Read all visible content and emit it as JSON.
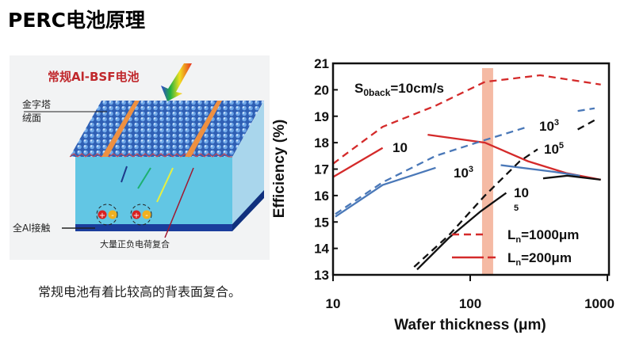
{
  "title": "PERC电池原理",
  "diagram": {
    "heading": "常规Al-BSF电池",
    "label_texture_1": "金字塔",
    "label_texture_2": "绒面",
    "label_contact": "全Al接触",
    "label_recombination": "大量正负电荷复合",
    "plus": "+",
    "minus": "-"
  },
  "caption": "常规电池有着比较高的背表面复合。",
  "chart_data": {
    "type": "line",
    "xlabel": "Wafer thickness (μm)",
    "ylabel": "Efficiency (%)",
    "xscale": "log",
    "xlim": [
      10,
      1000
    ],
    "ylim": [
      13,
      21
    ],
    "xticks": [
      "10",
      "100",
      "1000"
    ],
    "yticks": [
      "13",
      "14",
      "15",
      "16",
      "17",
      "18",
      "19",
      "20",
      "21"
    ],
    "grid": false,
    "highlight_band": {
      "x": [
        122,
        147
      ],
      "color": "#f4b39a"
    },
    "annotations": {
      "s0back_main": "S",
      "s0back_sub": "0back",
      "s0back_rest": "=10cm/s",
      "s10": "10",
      "s1e3_a": "10",
      "s1e3_a_exp": "3",
      "s1e3_b": "10",
      "s1e3_b_exp": "3",
      "s1e5_a": "10",
      "s1e5_a_exp": "5",
      "s1e5_b": "10",
      "s1e5_b_sub": "5"
    },
    "legend": {
      "position": "bottom-right",
      "items": [
        {
          "main": "L",
          "sub": "n",
          "rest": "=1000μm",
          "style": "dashed"
        },
        {
          "main": "L",
          "sub": "n",
          "rest": "=200μm",
          "style": "solid"
        }
      ]
    },
    "series": [
      {
        "S": "10",
        "Ln": "1000",
        "color": "#d42a2a",
        "dash": true,
        "points": [
          [
            10,
            17.2
          ],
          [
            11.9,
            17.5
          ],
          [
            23,
            18.6
          ],
          [
            56,
            19.4
          ],
          [
            128,
            20.3
          ],
          [
            324,
            20.55
          ],
          [
            895,
            20.2
          ]
        ]
      },
      {
        "S": "10",
        "Ln": "200",
        "color": "#d42a2a",
        "dash": false,
        "points": [
          [
            10,
            16.7
          ],
          [
            23,
            17.8
          ]
        ]
      },
      {
        "S": "10",
        "Ln": "200",
        "color": "#d42a2a",
        "dash": false,
        "points": [
          [
            49,
            18.3
          ],
          [
            128,
            18.0
          ],
          [
            263,
            17.3
          ],
          [
            500,
            16.85
          ],
          [
            895,
            16.6
          ]
        ]
      },
      {
        "S": "1000",
        "Ln": "1000",
        "color": "#4a78b8",
        "dash": true,
        "points": [
          [
            10.4,
            15.3
          ],
          [
            23,
            16.5
          ],
          [
            56,
            17.5
          ],
          [
            128,
            18.1
          ],
          [
            263,
            18.6
          ]
        ]
      },
      {
        "S": "1000",
        "Ln": "1000",
        "color": "#4a78b8",
        "dash": true,
        "points": [
          [
            608,
            19.2
          ],
          [
            807,
            19.3
          ]
        ]
      },
      {
        "S": "1000",
        "Ln": "200",
        "color": "#4a78b8",
        "dash": false,
        "points": [
          [
            10.4,
            15.2
          ],
          [
            23,
            16.4
          ],
          [
            56,
            17.05
          ]
        ]
      },
      {
        "S": "1000",
        "Ln": "200",
        "color": "#4a78b8",
        "dash": false,
        "points": [
          [
            167,
            17.15
          ],
          [
            405,
            16.9
          ],
          [
            630,
            16.75
          ]
        ]
      },
      {
        "S": "100000",
        "Ln": "1000",
        "color": "#111111",
        "dash": true,
        "points": [
          [
            39,
            13.3
          ],
          [
            70,
            14.5
          ],
          [
            128,
            16.0
          ],
          [
            230,
            17.3
          ],
          [
            310,
            17.75
          ]
        ]
      },
      {
        "S": "100000",
        "Ln": "1000",
        "color": "#111111",
        "dash": true,
        "points": [
          [
            608,
            18.5
          ],
          [
            807,
            18.85
          ]
        ]
      },
      {
        "S": "100000",
        "Ln": "200",
        "color": "#111111",
        "dash": false,
        "points": [
          [
            41,
            13.2
          ],
          [
            70,
            14.4
          ],
          [
            119,
            15.4
          ],
          [
            183,
            16.1
          ]
        ]
      },
      {
        "S": "100000",
        "Ln": "200",
        "color": "#111111",
        "dash": false,
        "points": [
          [
            340,
            16.65
          ],
          [
            510,
            16.75
          ],
          [
            895,
            16.6
          ]
        ]
      }
    ]
  }
}
